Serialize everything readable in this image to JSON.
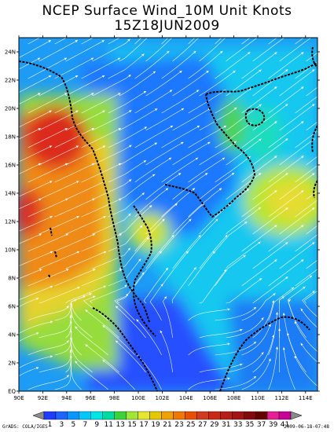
{
  "title": "NCEP Surface Wind_10M Unit Knots",
  "subtitle": "15Z18JUN2009",
  "footer": {
    "left": "GrADS: COLA/IGES",
    "right": "2009-06-18-07:48"
  },
  "axes": {
    "lon_ticks": [
      "90E",
      "92E",
      "94E",
      "96E",
      "98E",
      "100E",
      "102E",
      "104E",
      "106E",
      "108E",
      "110E",
      "112E",
      "114E"
    ],
    "lat_ticks": [
      "EQ",
      "2N",
      "4N",
      "6N",
      "8N",
      "10N",
      "12N",
      "14N",
      "16N",
      "18N",
      "20N",
      "22N",
      "24N"
    ],
    "lon_range": [
      90,
      115
    ],
    "lat_range": [
      0,
      25
    ]
  },
  "colorbar": {
    "labels": [
      "1",
      "3",
      "5",
      "7",
      "9",
      "11",
      "13",
      "15",
      "17",
      "19",
      "21",
      "23",
      "25",
      "27",
      "29",
      "31",
      "33",
      "35",
      "37",
      "39",
      "41"
    ],
    "colors": [
      "#1e3cff",
      "#1e64ff",
      "#0a96ff",
      "#00c8ff",
      "#00e6e6",
      "#00dca0",
      "#3cd23c",
      "#a0e632",
      "#e6e632",
      "#e6c800",
      "#f0a000",
      "#f07800",
      "#e65000",
      "#d23c1e",
      "#c82814",
      "#b41e14",
      "#a01414",
      "#820a0a",
      "#640000",
      "#e61e96",
      "#c80096"
    ]
  },
  "chart_data": {
    "type": "heatmap",
    "variable": "Surface Wind 10M",
    "units": "Knots",
    "time": "15Z18JUN2009",
    "x": "longitude 90E-115E",
    "y": "latitude 0-25N",
    "color_scale": [
      1,
      3,
      5,
      7,
      9,
      11,
      13,
      15,
      17,
      19,
      21,
      23,
      25,
      27,
      29,
      31,
      33,
      35,
      37,
      39,
      41
    ],
    "approx_regions": [
      {
        "region": "Bay of Bengal 16-19N 90-94E",
        "speed_knots": 25
      },
      {
        "region": "Bay of Bengal 10-15N 90-97E",
        "speed_knots": 21
      },
      {
        "region": "Andaman Sea 5-10N 90-96E",
        "speed_knots": 15
      },
      {
        "region": "Gulf of Thailand 11-12N 99-101E",
        "speed_knots": 15
      },
      {
        "region": "South China Sea 11-15N 110-115E",
        "speed_knots": 15
      },
      {
        "region": "Indochina land",
        "speed_knots": 5
      },
      {
        "region": "Equatorial Borneo/Sumatra",
        "speed_knots": 3
      }
    ]
  }
}
